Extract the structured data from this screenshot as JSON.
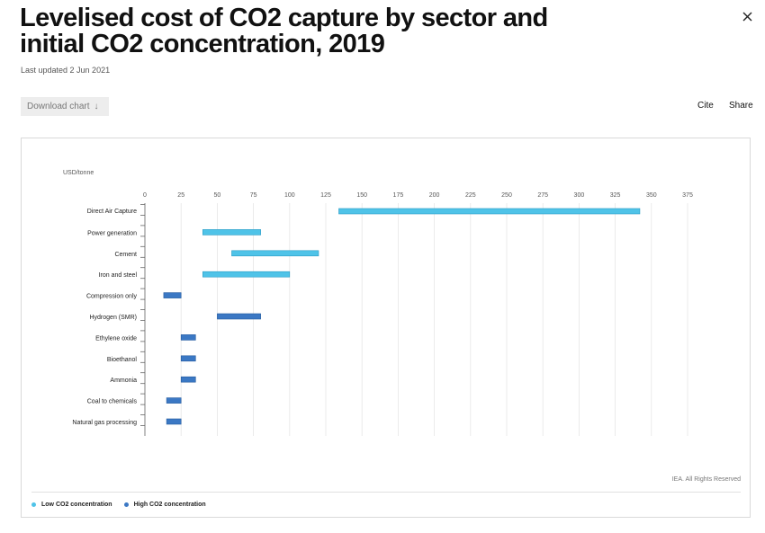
{
  "header": {
    "title": "Levelised cost of CO2 capture by sector and initial CO2 concentration, 2019",
    "updated": "Last updated 2 Jun 2021"
  },
  "toolbar": {
    "download_label": "Download chart",
    "download_icon": "↓",
    "cite_label": "Cite",
    "share_label": "Share",
    "close_icon": "close-icon"
  },
  "chart_data": {
    "type": "bar",
    "orientation": "horizontal-range",
    "unit_label": "USD/tonne",
    "xlim": [
      0,
      375
    ],
    "x_ticks": [
      0,
      25,
      50,
      75,
      100,
      125,
      150,
      175,
      200,
      225,
      250,
      275,
      300,
      325,
      350,
      375
    ],
    "grid": true,
    "categories": [
      "Direct Air Capture",
      "Power generation",
      "Cement",
      "Iron and steel",
      "Compression only",
      "Hydrogen (SMR)",
      "Ethylene oxide",
      "Bioethanol",
      "Ammonia",
      "Coal to chemicals",
      "Natural gas processing"
    ],
    "series": [
      {
        "name": "Low CO2 concentration",
        "color": "#4fc3e8",
        "ranges": [
          [
            134,
            342
          ],
          [
            40,
            80
          ],
          [
            60,
            120
          ],
          [
            40,
            100
          ],
          null,
          null,
          null,
          null,
          null,
          null,
          null
        ]
      },
      {
        "name": "High CO2 concentration",
        "color": "#3b78c4",
        "ranges": [
          null,
          null,
          null,
          null,
          [
            13,
            25
          ],
          [
            50,
            80
          ],
          [
            25,
            35
          ],
          [
            25,
            35
          ],
          [
            25,
            35
          ],
          [
            15,
            25
          ],
          [
            15,
            25
          ]
        ]
      }
    ],
    "credit": "IEA. All Rights Reserved",
    "legend_position": "bottom-left"
  }
}
